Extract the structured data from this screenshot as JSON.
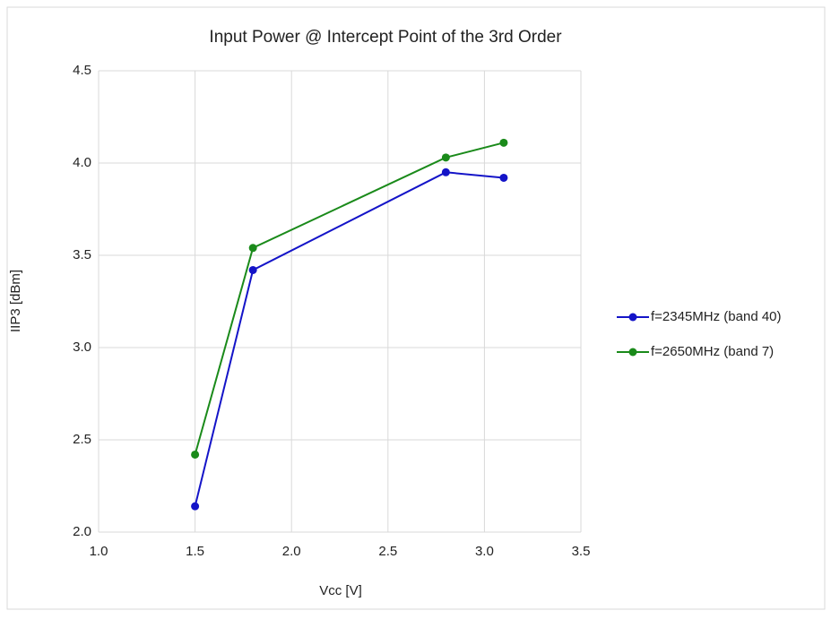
{
  "chart_data": {
    "type": "line",
    "title": "Input Power @ Intercept Point of the 3rd Order",
    "x_label": "Vcc [V]",
    "y_label": "IIP3 [dBm]",
    "x": [
      1.5,
      1.8,
      2.8,
      3.1
    ],
    "series": [
      {
        "name": "f=2345MHz (band 40)",
        "color": "#1414c8",
        "values": [
          2.14,
          3.42,
          3.95,
          3.92
        ]
      },
      {
        "name": "f=2650MHz (band 7)",
        "color": "#1a8a1a",
        "values": [
          2.42,
          3.54,
          4.03,
          4.11
        ]
      }
    ],
    "xlim": [
      1.0,
      3.5
    ],
    "xticks": [
      {
        "value": 1.0,
        "label": "1.0"
      },
      1.5,
      {
        "value": 2.0,
        "label": "2.0"
      },
      2.5,
      {
        "value": 3.0,
        "label": "3.0"
      },
      3.5
    ],
    "ylim": [
      2.0,
      4.5
    ],
    "yticks": [
      {
        "value": 2.0,
        "label": "2.0"
      },
      2.5,
      {
        "value": 3.0,
        "label": "3.0"
      },
      3.5,
      {
        "value": 4.0,
        "label": "4.0"
      },
      4.5
    ],
    "grid": true,
    "legend": "right"
  }
}
